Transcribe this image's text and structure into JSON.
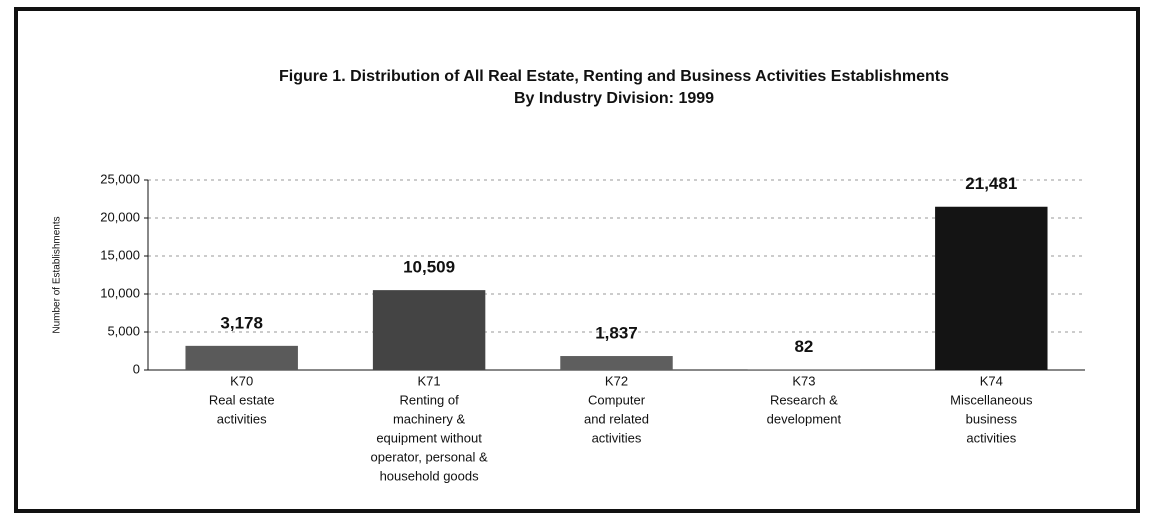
{
  "chart_data": {
    "type": "bar",
    "title": [
      "Figure 1. Distribution of All Real Estate, Renting and Business Activities Establishments",
      "By Industry Division: 1999"
    ],
    "y_label": "Number of Establishments",
    "categories": [
      [
        "K70",
        "Real estate",
        "activities"
      ],
      [
        "K71",
        "Renting of",
        "machinery &",
        "equipment without",
        "operator, personal &",
        "household goods"
      ],
      [
        "K72",
        "Computer",
        "and related",
        "activities"
      ],
      [
        "K73",
        "Research &",
        "development"
      ],
      [
        "K74",
        "Miscellaneous",
        "business",
        "activities"
      ]
    ],
    "values": [
      3178,
      10509,
      1837,
      82,
      21481
    ],
    "value_labels": [
      "3,178",
      "10,509",
      "1,837",
      "82",
      "21,481"
    ],
    "colors": [
      "#5a5a5a",
      "#444444",
      "#5e5e5e",
      "#5e5e5e",
      "#141414"
    ],
    "ylim": [
      0,
      25000
    ],
    "yticks": [
      0,
      {
        "value": 5000,
        "label": "5,000"
      },
      {
        "value": 10000,
        "label": "10,000"
      },
      {
        "value": 15000,
        "label": "15,000"
      },
      {
        "value": 20000,
        "label": "20,000"
      },
      {
        "value": 25000,
        "label": "25,000"
      }
    ],
    "grid": true
  }
}
